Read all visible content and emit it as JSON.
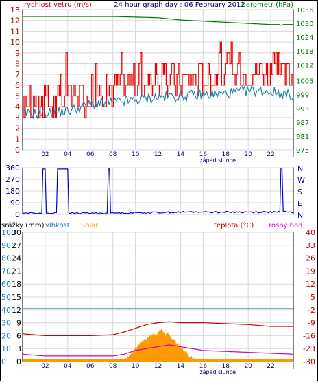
{
  "chart_data": [
    {
      "type": "line",
      "title": "24 hour graph day : 06 February 2012",
      "left_axis_label": "rychlost vetru (m/s)",
      "right_axis_label": "barometr (hPa)",
      "left_ticks": [
        "0",
        "1",
        "2",
        "3",
        "4",
        "5",
        "6",
        "7",
        "8",
        "9",
        "10",
        "11",
        "12",
        "13"
      ],
      "right_ticks": [
        "975",
        "981",
        "987",
        "993",
        "999",
        "1005",
        "1012",
        "1018",
        "1024",
        "1030",
        "1036"
      ],
      "x_ticks": [
        "02",
        "04",
        "06",
        "08",
        "10",
        "12",
        "14",
        "16",
        "18",
        "20",
        "22"
      ],
      "sunset_label": "západ slunce",
      "ylim_left": [
        0,
        13
      ],
      "ylim_right": [
        975,
        1036
      ],
      "grid": true,
      "colors": {
        "gust": "#ee0000",
        "wind": "#1a80a8",
        "barometer": "#007700"
      },
      "series": [
        {
          "name": "rychlost vetru (m/s)",
          "axis": "left",
          "x": [
            0,
            2,
            4,
            6,
            8,
            10,
            12,
            14,
            16,
            18,
            20,
            22,
            24
          ],
          "values": [
            3.3,
            3.4,
            3.6,
            4.2,
            4.4,
            4.6,
            4.9,
            5.0,
            5.1,
            5.2,
            5.5,
            5.4,
            5.0
          ]
        },
        {
          "axis": "left",
          "x": [
            0,
            2,
            4,
            6,
            8,
            10,
            12,
            14,
            16,
            18,
            20,
            22,
            24
          ],
          "values": [
            4.0,
            4.3,
            4.5,
            5.2,
            5.8,
            6.3,
            6.3,
            6.6,
            6.7,
            7.1,
            7.3,
            7.3,
            6.8
          ]
        },
        {
          "name": "barometr (hPa)",
          "axis": "right",
          "x": [
            0,
            4,
            8,
            12,
            14,
            16,
            18,
            20,
            22,
            24
          ],
          "values": [
            1033,
            1033,
            1033,
            1032.5,
            1031.5,
            1031,
            1030.5,
            1030,
            1029.5,
            1029.5
          ]
        }
      ]
    },
    {
      "type": "line",
      "left_ticks": [
        "360",
        "270",
        "180",
        "90",
        "0"
      ],
      "right_ticks": [
        "N",
        "W",
        "S",
        "E",
        "N"
      ],
      "ylim": [
        0,
        360
      ],
      "grid": true,
      "colors": {
        "direction": "#0000cc"
      },
      "series": [
        {
          "x": [
            0,
            1.7,
            1.8,
            2.0,
            2.1,
            3.0,
            3.1,
            4.0,
            4.1,
            7.5,
            7.6,
            7.7,
            7.8,
            16,
            16.1,
            22.8,
            22.9,
            23.0,
            23.1,
            24
          ],
          "values": [
            10,
            10,
            350,
            350,
            10,
            10,
            350,
            350,
            10,
            10,
            350,
            350,
            10,
            20,
            18,
            18,
            355,
            355,
            20,
            15
          ]
        }
      ]
    },
    {
      "type": "area",
      "labels": {
        "precip": "srážky (mm)",
        "humidity": "vlhkost",
        "solar": "Solar",
        "temperature": "teplota (°C)",
        "dewpoint": "rosný bod"
      },
      "precip_ticks": [
        "30",
        "27",
        "24",
        "21",
        "18",
        "15",
        "12",
        "9",
        "6",
        "3",
        "0"
      ],
      "humidity_ticks": [
        "100",
        "90",
        "80",
        "70",
        "60",
        "50",
        "40",
        "30",
        "20",
        "10",
        "0"
      ],
      "temp_ticks": [
        "40",
        "33",
        "26",
        "19",
        "12",
        "5",
        "-2",
        "-9",
        "-16",
        "-23",
        "-30"
      ],
      "x_ticks": [
        "02",
        "04",
        "06",
        "08",
        "10",
        "12",
        "14",
        "16",
        "18",
        "20",
        "22"
      ],
      "sunset_label": "západ slunce",
      "ylim_humidity": [
        0,
        100
      ],
      "ylim_temp": [
        -30,
        40
      ],
      "grid": true,
      "colors": {
        "humidity": "#1a80c0",
        "solar": "#ff9900",
        "temperature": "#cc0000",
        "dewpoint": "#cc00cc"
      },
      "series": [
        {
          "name": "vlhkost",
          "x": [
            0,
            24
          ],
          "values": [
            41,
            41
          ]
        },
        {
          "name": "teplota (°C)",
          "x": [
            0,
            2,
            4,
            6,
            8,
            9,
            10,
            11,
            12,
            13,
            14,
            16,
            18,
            20,
            22,
            24
          ],
          "values": [
            -15,
            -16,
            -16,
            -16,
            -15.5,
            -14,
            -12,
            -10,
            -9,
            -8.5,
            -9,
            -9,
            -9.5,
            -10,
            -11,
            -11
          ]
        },
        {
          "name": "rosný bod",
          "x": [
            0,
            2,
            4,
            6,
            8,
            9,
            10,
            11,
            12,
            13,
            14,
            16,
            18,
            20,
            22,
            24
          ],
          "values": [
            -26,
            -27,
            -27,
            -27,
            -27,
            -26,
            -24,
            -23,
            -22,
            -21,
            -22,
            -24,
            -24.5,
            -25,
            -25.5,
            -26
          ]
        },
        {
          "name": "Solar",
          "x": [
            0,
            8.8,
            9.0,
            9.5,
            10,
            10.5,
            11,
            11.5,
            12,
            12.3,
            12.6,
            13,
            13.5,
            14,
            14.5,
            15,
            15.3,
            24
          ],
          "values": [
            2,
            2,
            2,
            5,
            11,
            15,
            18,
            21,
            22,
            25,
            22,
            20,
            16,
            11,
            7,
            3,
            2,
            2
          ]
        }
      ]
    }
  ]
}
